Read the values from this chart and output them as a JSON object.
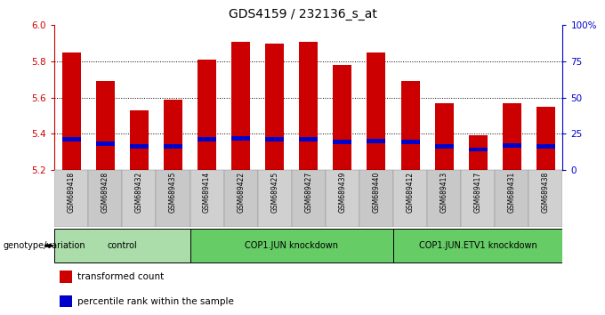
{
  "title": "GDS4159 / 232136_s_at",
  "samples": [
    "GSM689418",
    "GSM689428",
    "GSM689432",
    "GSM689435",
    "GSM689414",
    "GSM689422",
    "GSM689425",
    "GSM689427",
    "GSM689439",
    "GSM689440",
    "GSM689412",
    "GSM689413",
    "GSM689417",
    "GSM689431",
    "GSM689438"
  ],
  "transformed_counts": [
    5.85,
    5.69,
    5.53,
    5.59,
    5.81,
    5.91,
    5.9,
    5.91,
    5.78,
    5.85,
    5.69,
    5.57,
    5.39,
    5.57,
    5.55
  ],
  "percentile_ranks": [
    5.37,
    5.345,
    5.33,
    5.33,
    5.37,
    5.375,
    5.37,
    5.37,
    5.355,
    5.36,
    5.355,
    5.33,
    5.315,
    5.335,
    5.33
  ],
  "groups": [
    {
      "label": "control",
      "indices": [
        0,
        1,
        2,
        3
      ],
      "color": "#aaddaa"
    },
    {
      "label": "COP1.JUN knockdown",
      "indices": [
        4,
        5,
        6,
        7,
        8,
        9
      ],
      "color": "#66cc66"
    },
    {
      "label": "COP1.JUN.ETV1 knockdown",
      "indices": [
        10,
        11,
        12,
        13,
        14
      ],
      "color": "#66cc66"
    }
  ],
  "ymin": 5.2,
  "ymax": 6.0,
  "yticks": [
    5.2,
    5.4,
    5.6,
    5.8,
    6.0
  ],
  "right_yticks": [
    0,
    25,
    50,
    75,
    100
  ],
  "right_ytick_labels": [
    "0",
    "25",
    "50",
    "75",
    "100%"
  ],
  "bar_color": "#cc0000",
  "percentile_color": "#0000cc",
  "background_color": "#ffffff",
  "plot_bg_color": "#ffffff",
  "label_color_left": "#cc0000",
  "label_color_right": "#0000cc",
  "group_colors": [
    "#aaddaa",
    "#66cc66",
    "#66cc66"
  ]
}
